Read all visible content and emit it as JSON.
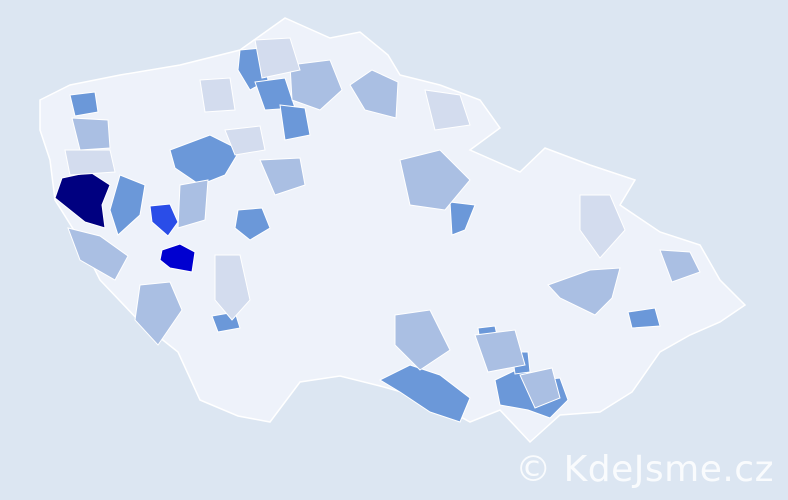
{
  "map": {
    "palette": {
      "background": "#dce6f2",
      "base": "#eef2fa",
      "border": "#ffffff",
      "level1": "#d3dcee",
      "level2": "#aabfe3",
      "level3": "#6b98d9",
      "level4": "#2a4de8",
      "level5": "#0000d0",
      "level6": "#000080"
    }
  },
  "watermark": "© KdeJsme.cz"
}
